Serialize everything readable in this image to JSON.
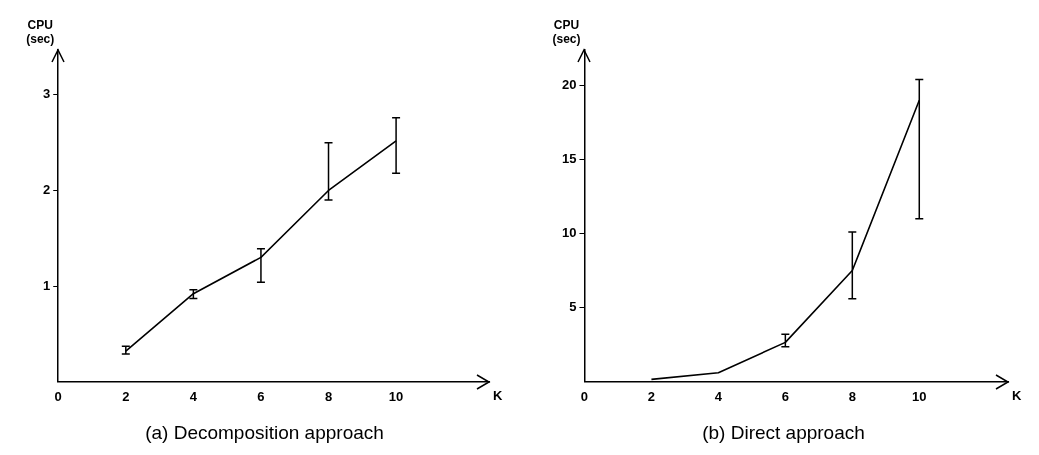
{
  "chart_data": [
    {
      "type": "line",
      "title": "(a) Decomposition approach",
      "xlabel": "K",
      "ylabel": "CPU (sec)",
      "color": "#000000",
      "marker": "none",
      "x": [
        2,
        4,
        6,
        8,
        10
      ],
      "values": [
        0.32,
        0.92,
        1.3,
        2.0,
        2.52
      ],
      "errors": [
        [
          0.29,
          0.37
        ],
        [
          0.87,
          0.96
        ],
        [
          1.04,
          1.39
        ],
        [
          1.9,
          2.5
        ],
        [
          2.18,
          2.76
        ]
      ],
      "xlim": [
        0,
        12.75
      ],
      "xticks": [
        0,
        2,
        4,
        6,
        8,
        10
      ],
      "ylim": [
        0,
        3.47
      ],
      "yticks": [
        1,
        2,
        3
      ]
    },
    {
      "type": "line",
      "title": "(b) Direct approach",
      "xlabel": "K",
      "ylabel": "CPU (sec)",
      "color": "#000000",
      "marker": "none",
      "x": [
        2,
        4,
        6,
        8,
        10
      ],
      "values": [
        0.15,
        0.6,
        2.65,
        7.5,
        19.0
      ],
      "errors": [
        null,
        null,
        [
          2.35,
          3.2
        ],
        [
          5.6,
          10.1
        ],
        [
          11.0,
          20.4
        ]
      ],
      "xlim": [
        0,
        12.65
      ],
      "xticks": [
        0,
        2,
        4,
        6,
        8,
        10
      ],
      "ylim": [
        0,
        22.4
      ],
      "yticks": [
        5,
        10,
        15,
        20
      ]
    }
  ]
}
